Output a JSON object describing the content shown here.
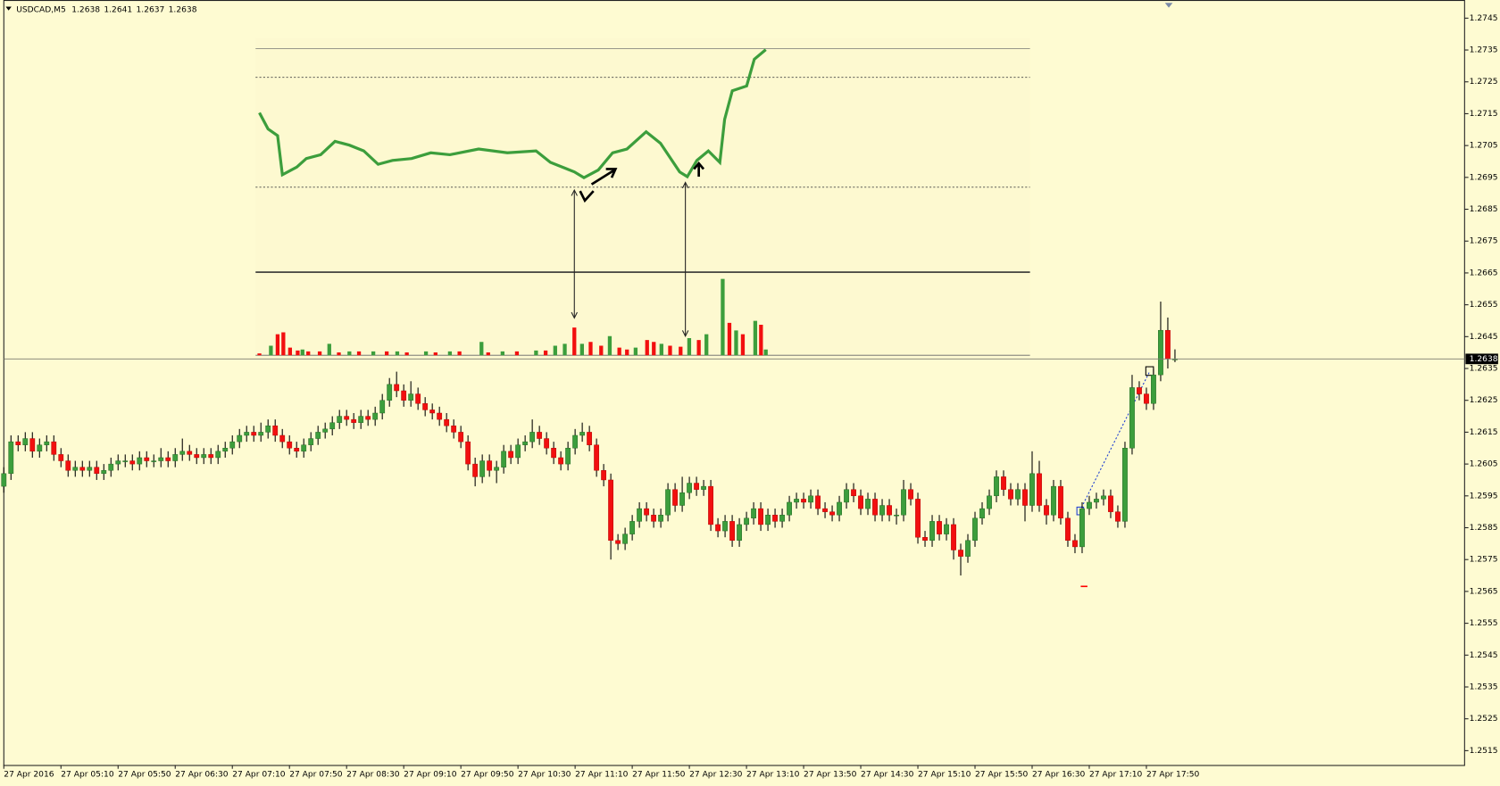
{
  "chart_data": {
    "type": "candlestick",
    "symbol": "USDCAD,M5",
    "categories": [
      "27 Apr 2016",
      null,
      null,
      null,
      null,
      null,
      null,
      null,
      "27 Apr 05:10",
      null,
      null,
      null,
      null,
      null,
      null,
      null,
      "27 Apr 05:50",
      null,
      null,
      null,
      null,
      null,
      null,
      null,
      "27 Apr 06:30",
      null,
      null,
      null,
      null,
      null,
      null,
      null,
      "27 Apr 07:10",
      null,
      null,
      null,
      null,
      null,
      null,
      null,
      "27 Apr 07:50",
      null,
      null,
      null,
      null,
      null,
      null,
      null,
      "27 Apr 08:30",
      null,
      null,
      null,
      null,
      null,
      null,
      null,
      "27 Apr 09:10",
      null,
      null,
      null,
      null,
      null,
      null,
      null,
      "27 Apr 09:50",
      null,
      null,
      null,
      null,
      null,
      null,
      null,
      "27 Apr 10:30",
      null,
      null,
      null,
      null,
      null,
      null,
      null,
      "27 Apr 11:10",
      null,
      null,
      null,
      null,
      null,
      null,
      null,
      "27 Apr 11:50",
      null,
      null,
      null,
      null,
      null,
      null,
      null,
      "27 Apr 12:30",
      null,
      null,
      null,
      null,
      null,
      null,
      null,
      "27 Apr 13:10",
      null,
      null,
      null,
      null,
      null,
      null,
      null,
      "27 Apr 13:50",
      null,
      null,
      null,
      null,
      null,
      null,
      null,
      "27 Apr 14:30",
      null,
      null,
      null,
      null,
      null,
      null,
      null,
      "27 Apr 15:10",
      null,
      null,
      null,
      null,
      null,
      null,
      null,
      "27 Apr 15:50",
      null,
      null,
      null,
      null,
      null,
      null,
      null,
      "27 Apr 16:30",
      null,
      null,
      null,
      null,
      null,
      null,
      null,
      "27 Apr 17:10",
      null,
      null,
      null,
      null,
      null,
      null,
      null,
      "27 Apr 17:50",
      null,
      null,
      null,
      null
    ],
    "ohlc": [
      [
        1.2598,
        1.2604,
        1.2596,
        1.2602
      ],
      [
        1.2602,
        1.2614,
        1.26,
        1.2612
      ],
      [
        1.2612,
        1.2614,
        1.2609,
        1.2611
      ],
      [
        1.2611,
        1.2615,
        1.2609,
        1.2613
      ],
      [
        1.2613,
        1.2615,
        1.2607,
        1.2609
      ],
      [
        1.2609,
        1.2613,
        1.2607,
        1.2611
      ],
      [
        1.2611,
        1.2614,
        1.2609,
        1.2612
      ],
      [
        1.2612,
        1.2614,
        1.2606,
        1.2608
      ],
      [
        1.2608,
        1.261,
        1.2604,
        1.2606
      ],
      [
        1.2606,
        1.2608,
        1.2601,
        1.2603
      ],
      [
        1.2603,
        1.2606,
        1.2601,
        1.2604
      ],
      [
        1.2604,
        1.2606,
        1.2601,
        1.2603
      ],
      [
        1.2603,
        1.2606,
        1.2601,
        1.2604
      ],
      [
        1.2604,
        1.2606,
        1.26,
        1.2602
      ],
      [
        1.2602,
        1.2605,
        1.26,
        1.2603
      ],
      [
        1.2603,
        1.2607,
        1.2601,
        1.2605
      ],
      [
        1.2605,
        1.2608,
        1.2603,
        1.2606
      ],
      [
        1.2606,
        1.2608,
        1.2604,
        1.2606
      ],
      [
        1.2606,
        1.2608,
        1.2603,
        1.2605
      ],
      [
        1.2605,
        1.2609,
        1.2603,
        1.2607
      ],
      [
        1.2607,
        1.2609,
        1.2604,
        1.2606
      ],
      [
        1.2606,
        1.2608,
        1.2604,
        1.2606
      ],
      [
        1.2606,
        1.261,
        1.2604,
        1.2607
      ],
      [
        1.2607,
        1.2609,
        1.2604,
        1.2606
      ],
      [
        1.2606,
        1.261,
        1.2604,
        1.2608
      ],
      [
        1.2608,
        1.2613,
        1.2606,
        1.2609
      ],
      [
        1.2609,
        1.2611,
        1.2606,
        1.2608
      ],
      [
        1.2608,
        1.261,
        1.2605,
        1.2607
      ],
      [
        1.2607,
        1.261,
        1.2605,
        1.2608
      ],
      [
        1.2608,
        1.261,
        1.2605,
        1.2607
      ],
      [
        1.2607,
        1.2611,
        1.2605,
        1.2609
      ],
      [
        1.2609,
        1.2612,
        1.2607,
        1.261
      ],
      [
        1.261,
        1.2614,
        1.2608,
        1.2612
      ],
      [
        1.2612,
        1.2616,
        1.261,
        1.2614
      ],
      [
        1.2614,
        1.2617,
        1.2612,
        1.2615
      ],
      [
        1.2615,
        1.2617,
        1.2612,
        1.2614
      ],
      [
        1.2614,
        1.2618,
        1.2612,
        1.2615
      ],
      [
        1.2615,
        1.2619,
        1.2613,
        1.2617
      ],
      [
        1.2617,
        1.2619,
        1.2612,
        1.2614
      ],
      [
        1.2614,
        1.2616,
        1.261,
        1.2612
      ],
      [
        1.2612,
        1.2614,
        1.2608,
        1.261
      ],
      [
        1.261,
        1.2612,
        1.2607,
        1.2609
      ],
      [
        1.2609,
        1.2613,
        1.2607,
        1.2611
      ],
      [
        1.2611,
        1.2615,
        1.2609,
        1.2613
      ],
      [
        1.2613,
        1.2617,
        1.2611,
        1.2615
      ],
      [
        1.2615,
        1.2618,
        1.2613,
        1.2616
      ],
      [
        1.2616,
        1.262,
        1.2614,
        1.2618
      ],
      [
        1.2618,
        1.2622,
        1.2616,
        1.262
      ],
      [
        1.262,
        1.2622,
        1.2617,
        1.2619
      ],
      [
        1.2619,
        1.2621,
        1.2616,
        1.2618
      ],
      [
        1.2618,
        1.2622,
        1.2616,
        1.262
      ],
      [
        1.262,
        1.2622,
        1.2617,
        1.2619
      ],
      [
        1.2619,
        1.2623,
        1.2617,
        1.2621
      ],
      [
        1.2621,
        1.2627,
        1.2619,
        1.2625
      ],
      [
        1.2625,
        1.2632,
        1.2623,
        1.263
      ],
      [
        1.263,
        1.2634,
        1.2626,
        1.2628
      ],
      [
        1.2628,
        1.263,
        1.2623,
        1.2625
      ],
      [
        1.2625,
        1.2631,
        1.2623,
        1.2627
      ],
      [
        1.2627,
        1.2629,
        1.2622,
        1.2624
      ],
      [
        1.2624,
        1.2626,
        1.262,
        1.2622
      ],
      [
        1.2622,
        1.2624,
        1.2619,
        1.2621
      ],
      [
        1.2621,
        1.2623,
        1.2617,
        1.2619
      ],
      [
        1.2619,
        1.2621,
        1.2615,
        1.2617
      ],
      [
        1.2617,
        1.2619,
        1.2613,
        1.2615
      ],
      [
        1.2615,
        1.2617,
        1.261,
        1.2612
      ],
      [
        1.2612,
        1.2614,
        1.2603,
        1.2605
      ],
      [
        1.2605,
        1.2607,
        1.2598,
        1.2601
      ],
      [
        1.2601,
        1.2608,
        1.2599,
        1.2606
      ],
      [
        1.2606,
        1.2608,
        1.2601,
        1.2603
      ],
      [
        1.2603,
        1.2606,
        1.2599,
        1.2604
      ],
      [
        1.2604,
        1.2611,
        1.2602,
        1.2609
      ],
      [
        1.2609,
        1.2611,
        1.2605,
        1.2607
      ],
      [
        1.2607,
        1.2613,
        1.2605,
        1.2611
      ],
      [
        1.2611,
        1.2614,
        1.2609,
        1.2612
      ],
      [
        1.2612,
        1.2619,
        1.261,
        1.2615
      ],
      [
        1.2615,
        1.2617,
        1.2611,
        1.2613
      ],
      [
        1.2613,
        1.2615,
        1.2608,
        1.261
      ],
      [
        1.261,
        1.2612,
        1.2605,
        1.2607
      ],
      [
        1.2607,
        1.2609,
        1.2603,
        1.2605
      ],
      [
        1.2605,
        1.2612,
        1.2603,
        1.261
      ],
      [
        1.261,
        1.2616,
        1.2608,
        1.2614
      ],
      [
        1.2614,
        1.2618,
        1.2612,
        1.2615
      ],
      [
        1.2615,
        1.2617,
        1.2609,
        1.2611
      ],
      [
        1.2611,
        1.2613,
        1.2601,
        1.2603
      ],
      [
        1.2603,
        1.2605,
        1.2598,
        1.26
      ],
      [
        1.26,
        1.2602,
        1.2575,
        1.2581
      ],
      [
        1.2581,
        1.2583,
        1.2578,
        1.258
      ],
      [
        1.258,
        1.2585,
        1.2578,
        1.2583
      ],
      [
        1.2583,
        1.2589,
        1.2581,
        1.2587
      ],
      [
        1.2587,
        1.2593,
        1.2585,
        1.2591
      ],
      [
        1.2591,
        1.2593,
        1.2587,
        1.2589
      ],
      [
        1.2589,
        1.2591,
        1.2585,
        1.2587
      ],
      [
        1.2587,
        1.2591,
        1.2585,
        1.2589
      ],
      [
        1.2589,
        1.2599,
        1.2587,
        1.2597
      ],
      [
        1.2597,
        1.2599,
        1.259,
        1.2592
      ],
      [
        1.2592,
        1.2601,
        1.259,
        1.2596
      ],
      [
        1.2596,
        1.2601,
        1.2594,
        1.2599
      ],
      [
        1.2599,
        1.2601,
        1.2595,
        1.2597
      ],
      [
        1.2597,
        1.26,
        1.2595,
        1.2598
      ],
      [
        1.2598,
        1.26,
        1.2584,
        1.2586
      ],
      [
        1.2586,
        1.2588,
        1.2582,
        1.2584
      ],
      [
        1.2584,
        1.2589,
        1.2582,
        1.2587
      ],
      [
        1.2587,
        1.2589,
        1.2579,
        1.2581
      ],
      [
        1.2581,
        1.2588,
        1.2579,
        1.2586
      ],
      [
        1.2586,
        1.259,
        1.2584,
        1.2588
      ],
      [
        1.2588,
        1.2593,
        1.2586,
        1.2591
      ],
      [
        1.2591,
        1.2593,
        1.2584,
        1.2586
      ],
      [
        1.2586,
        1.2591,
        1.2584,
        1.2589
      ],
      [
        1.2589,
        1.2591,
        1.2585,
        1.2587
      ],
      [
        1.2587,
        1.2591,
        1.2585,
        1.2589
      ],
      [
        1.2589,
        1.2595,
        1.2587,
        1.2593
      ],
      [
        1.2593,
        1.2596,
        1.2591,
        1.2594
      ],
      [
        1.2594,
        1.2596,
        1.2591,
        1.2593
      ],
      [
        1.2593,
        1.2597,
        1.2591,
        1.2595
      ],
      [
        1.2595,
        1.2597,
        1.2589,
        1.2591
      ],
      [
        1.2591,
        1.2593,
        1.2588,
        1.259
      ],
      [
        1.259,
        1.2592,
        1.2587,
        1.2589
      ],
      [
        1.2589,
        1.2595,
        1.2587,
        1.2593
      ],
      [
        1.2593,
        1.2599,
        1.2591,
        1.2597
      ],
      [
        1.2597,
        1.2599,
        1.2593,
        1.2595
      ],
      [
        1.2595,
        1.2597,
        1.2589,
        1.2591
      ],
      [
        1.2591,
        1.2596,
        1.2589,
        1.2594
      ],
      [
        1.2594,
        1.2596,
        1.2587,
        1.2589
      ],
      [
        1.2589,
        1.2594,
        1.2587,
        1.2592
      ],
      [
        1.2592,
        1.2594,
        1.2587,
        1.2589
      ],
      [
        1.2589,
        1.2591,
        1.2586,
        1.2589
      ],
      [
        1.2589,
        1.26,
        1.2587,
        1.2597
      ],
      [
        1.2597,
        1.2599,
        1.2592,
        1.2594
      ],
      [
        1.2594,
        1.2596,
        1.258,
        1.2582
      ],
      [
        1.2582,
        1.2584,
        1.2579,
        1.2581
      ],
      [
        1.2581,
        1.2589,
        1.2579,
        1.2587
      ],
      [
        1.2587,
        1.2589,
        1.2581,
        1.2583
      ],
      [
        1.2583,
        1.2588,
        1.2581,
        1.2586
      ],
      [
        1.2586,
        1.2588,
        1.2575,
        1.2578
      ],
      [
        1.2578,
        1.258,
        1.257,
        1.2576
      ],
      [
        1.2576,
        1.2583,
        1.2574,
        1.2581
      ],
      [
        1.2581,
        1.259,
        1.2579,
        1.2588
      ],
      [
        1.2588,
        1.2593,
        1.2586,
        1.2591
      ],
      [
        1.2591,
        1.2597,
        1.2589,
        1.2595
      ],
      [
        1.2595,
        1.2603,
        1.2593,
        1.2601
      ],
      [
        1.2601,
        1.2603,
        1.2595,
        1.2597
      ],
      [
        1.2597,
        1.2599,
        1.2592,
        1.2594
      ],
      [
        1.2594,
        1.2599,
        1.2592,
        1.2597
      ],
      [
        1.2597,
        1.2599,
        1.2587,
        1.2592
      ],
      [
        1.2592,
        1.2609,
        1.259,
        1.2602
      ],
      [
        1.2602,
        1.2606,
        1.259,
        1.2592
      ],
      [
        1.2592,
        1.2594,
        1.2586,
        1.2589
      ],
      [
        1.2589,
        1.26,
        1.2587,
        1.2598
      ],
      [
        1.2598,
        1.26,
        1.2586,
        1.2588
      ],
      [
        1.2588,
        1.259,
        1.2579,
        1.2581
      ],
      [
        1.2581,
        1.2583,
        1.2577,
        1.2579
      ],
      [
        1.2579,
        1.2593,
        1.2577,
        1.2591
      ],
      [
        1.2591,
        1.2595,
        1.2589,
        1.2593
      ],
      [
        1.2593,
        1.2596,
        1.2591,
        1.2594
      ],
      [
        1.2594,
        1.2597,
        1.2592,
        1.2595
      ],
      [
        1.2595,
        1.2597,
        1.2588,
        1.259
      ],
      [
        1.259,
        1.2592,
        1.2585,
        1.2587
      ],
      [
        1.2587,
        1.2612,
        1.2585,
        1.261
      ],
      [
        1.261,
        1.2633,
        1.2608,
        1.2629
      ],
      [
        1.2629,
        1.2631,
        1.2625,
        1.2627
      ],
      [
        1.2627,
        1.2629,
        1.2622,
        1.2624
      ],
      [
        1.2624,
        1.2635,
        1.2622,
        1.2633
      ],
      [
        1.2633,
        1.2656,
        1.2631,
        1.2647
      ],
      [
        1.2647,
        1.2651,
        1.2635,
        1.2638
      ],
      [
        1.2638,
        1.2641,
        1.2637,
        1.2638
      ]
    ],
    "up_color": "#3c9e3c",
    "down_color": "#f20f0f",
    "ylim": [
      1.25105,
      1.27507
    ],
    "yticks": [
      1.2745,
      1.2735,
      1.2725,
      1.2715,
      1.2705,
      1.2695,
      1.2685,
      1.2675,
      1.2665,
      1.2655,
      1.2645,
      1.2635,
      1.2625,
      1.2615,
      1.2605,
      1.2595,
      1.2585,
      1.2575,
      1.2565,
      1.2555,
      1.2545,
      1.2535,
      1.2525,
      1.2515
    ],
    "grid": false
  }
}
